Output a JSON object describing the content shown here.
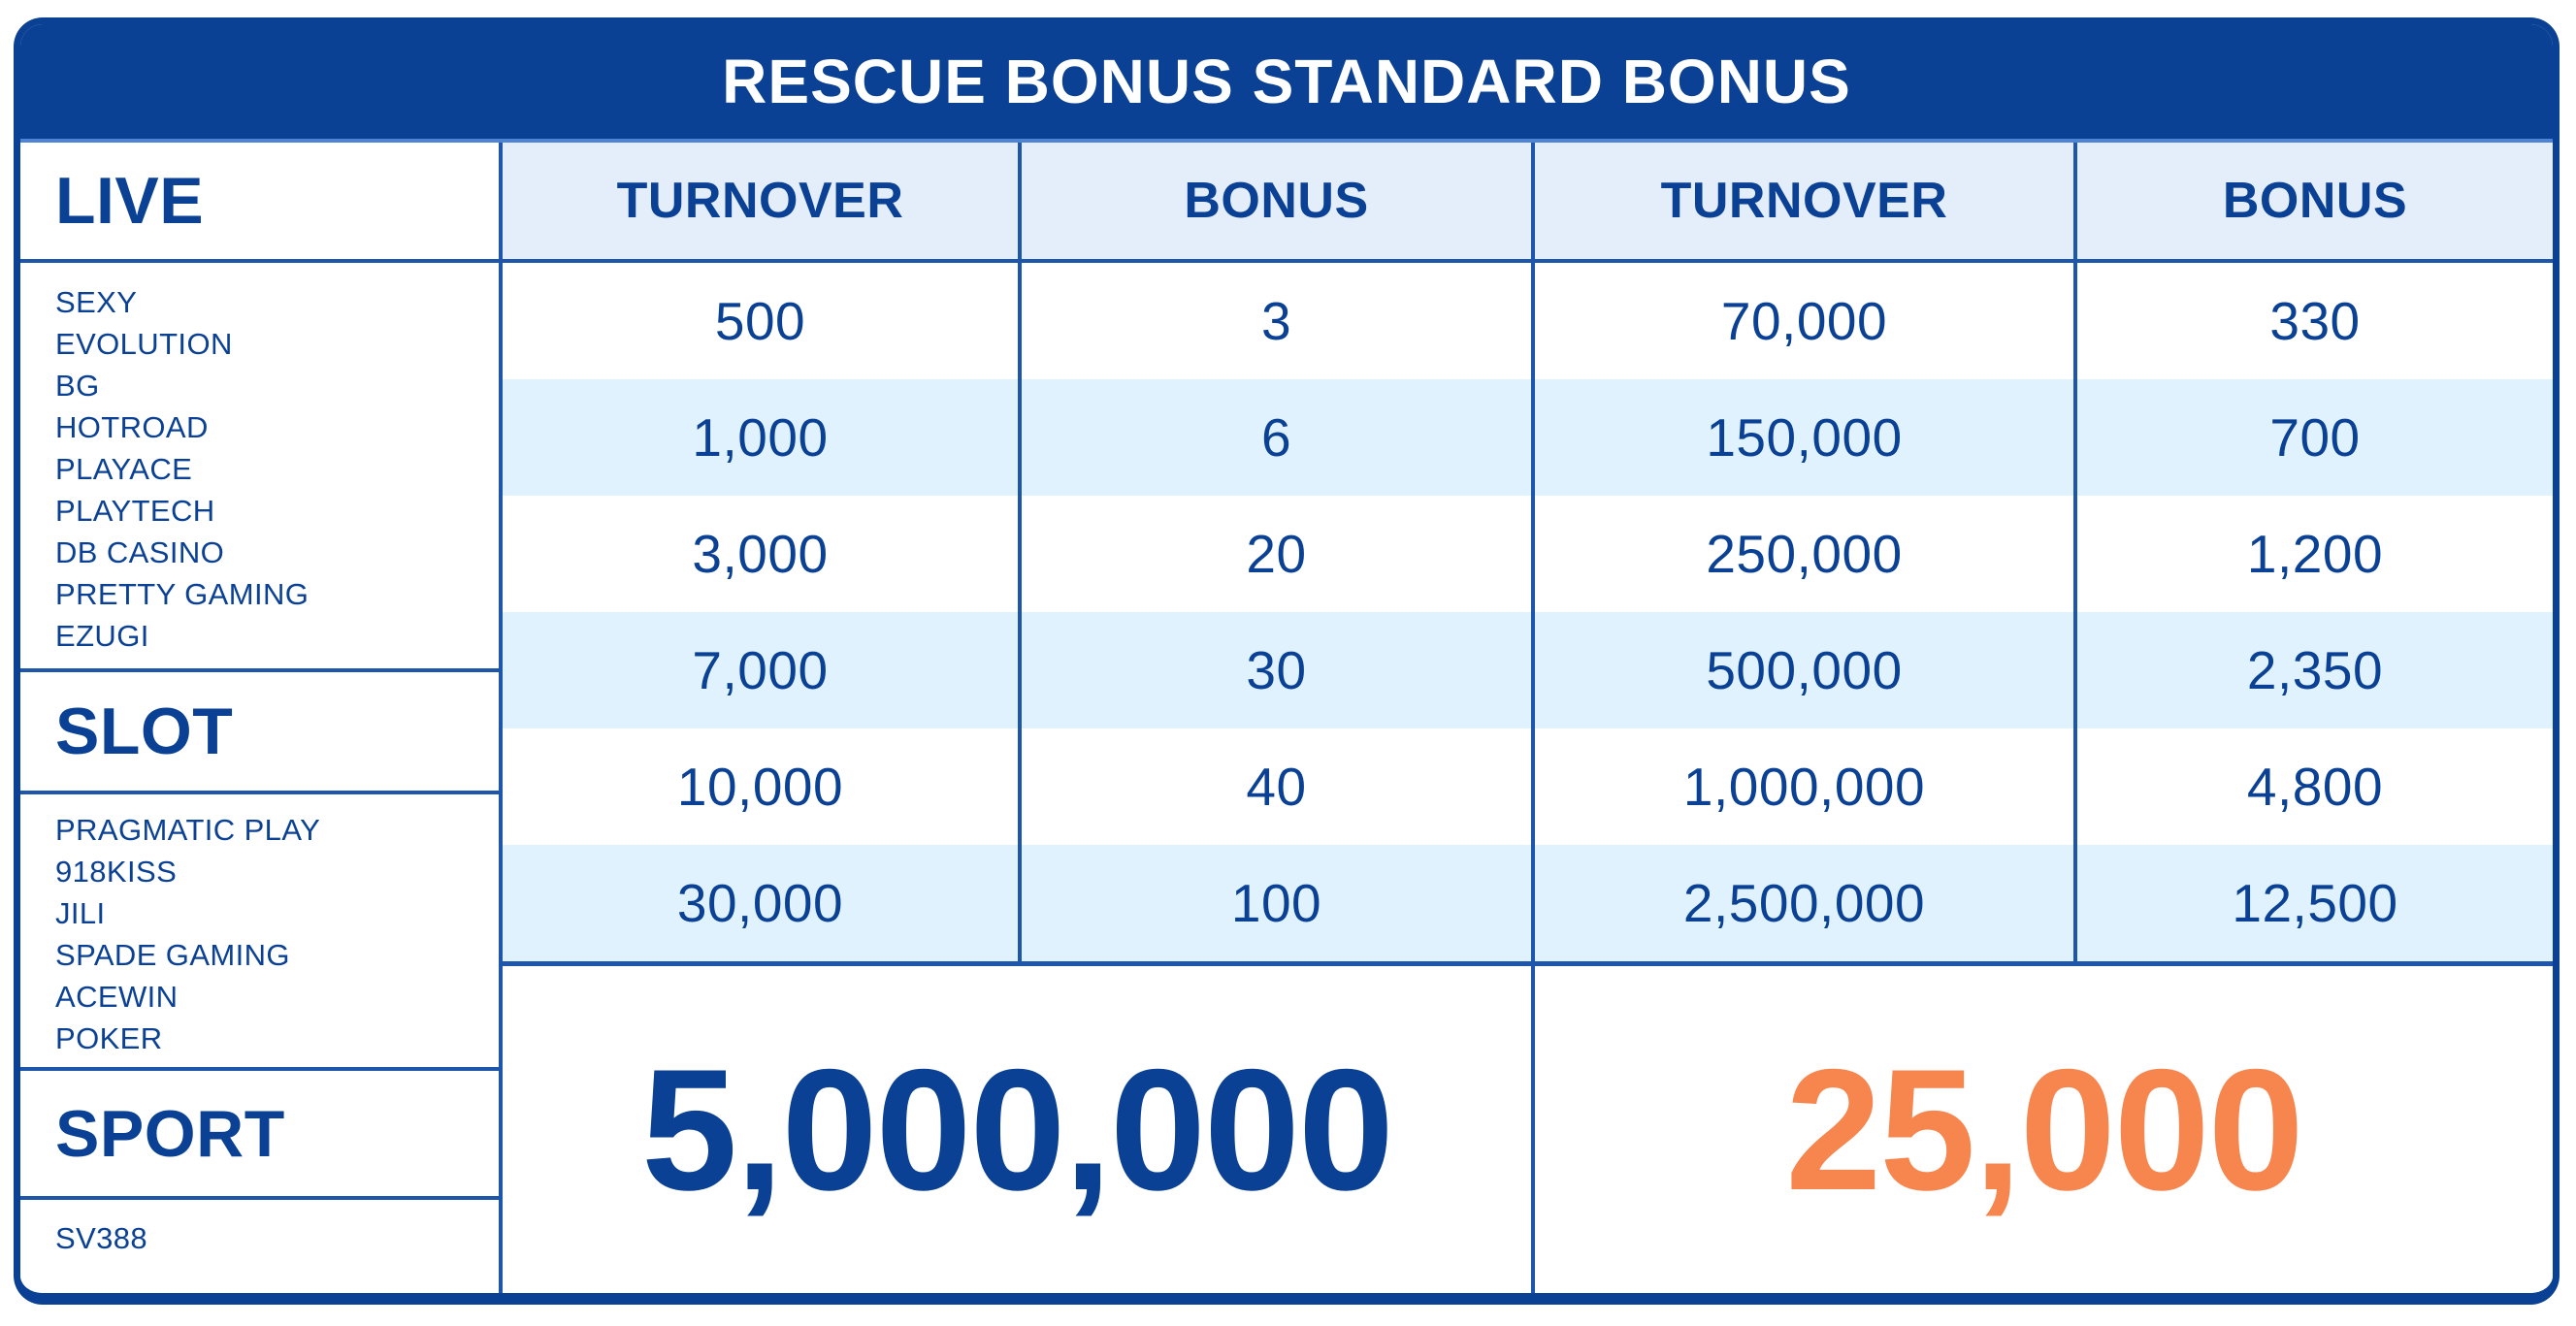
{
  "title": "RESCUE BONUS STANDARD BONUS",
  "colors": {
    "banner_bg": "#0a4194",
    "primary_text_blue": "#0a4194",
    "grid_line_blue": "#1e56ab",
    "header_cell_bg": "#e4eefb",
    "row_alt_bg": "#e0f2fd",
    "total_bonus_orange": "#f6854e",
    "title_text": "#ffffff"
  },
  "columns": {
    "turnover": "TURNOVER",
    "bonus": "BONUS"
  },
  "categories": [
    {
      "label": "LIVE",
      "providers": [
        "SEXY",
        "EVOLUTION",
        "BG",
        "HOTROAD",
        "PLAYACE",
        "PLAYTECH",
        "DB CASINO",
        "PRETTY GAMING",
        "EZUGI"
      ]
    },
    {
      "label": "SLOT",
      "providers": [
        "PRAGMATIC PLAY",
        "918KISS",
        "JILI",
        "SPADE GAMING",
        "ACEWIN",
        "POKER"
      ]
    },
    {
      "label": "SPORT",
      "providers": [
        "SV388"
      ]
    }
  ],
  "rows": [
    {
      "turnover_a": "500",
      "bonus_a": "3",
      "turnover_b": "70,000",
      "bonus_b": "330"
    },
    {
      "turnover_a": "1,000",
      "bonus_a": "6",
      "turnover_b": "150,000",
      "bonus_b": "700"
    },
    {
      "turnover_a": "3,000",
      "bonus_a": "20",
      "turnover_b": "250,000",
      "bonus_b": "1,200"
    },
    {
      "turnover_a": "7,000",
      "bonus_a": "30",
      "turnover_b": "500,000",
      "bonus_b": "2,350"
    },
    {
      "turnover_a": "10,000",
      "bonus_a": "40",
      "turnover_b": "1,000,000",
      "bonus_b": "4,800"
    },
    {
      "turnover_a": "30,000",
      "bonus_a": "100",
      "turnover_b": "2,500,000",
      "bonus_b": "12,500"
    }
  ],
  "totals": {
    "max_turnover": "5,000,000",
    "max_bonus": "25,000"
  },
  "chart_data": {
    "type": "table",
    "title": "RESCUE BONUS STANDARD BONUS",
    "columns": [
      "TURNOVER",
      "BONUS",
      "TURNOVER",
      "BONUS"
    ],
    "rows": [
      [
        500,
        3,
        70000,
        330
      ],
      [
        1000,
        6,
        150000,
        700
      ],
      [
        3000,
        20,
        250000,
        1200
      ],
      [
        7000,
        30,
        500000,
        2350
      ],
      [
        10000,
        40,
        1000000,
        4800
      ],
      [
        30000,
        100,
        2500000,
        12500
      ]
    ],
    "footer_totals": {
      "max_turnover": 5000000,
      "max_bonus": 25000
    },
    "category_groups": {
      "LIVE": [
        "SEXY",
        "EVOLUTION",
        "BG",
        "HOTROAD",
        "PLAYACE",
        "PLAYTECH",
        "DB CASINO",
        "PRETTY GAMING",
        "EZUGI"
      ],
      "SLOT": [
        "PRAGMATIC PLAY",
        "918KISS",
        "JILI",
        "SPADE GAMING",
        "ACEWIN",
        "POKER"
      ],
      "SPORT": [
        "SV388"
      ]
    }
  }
}
